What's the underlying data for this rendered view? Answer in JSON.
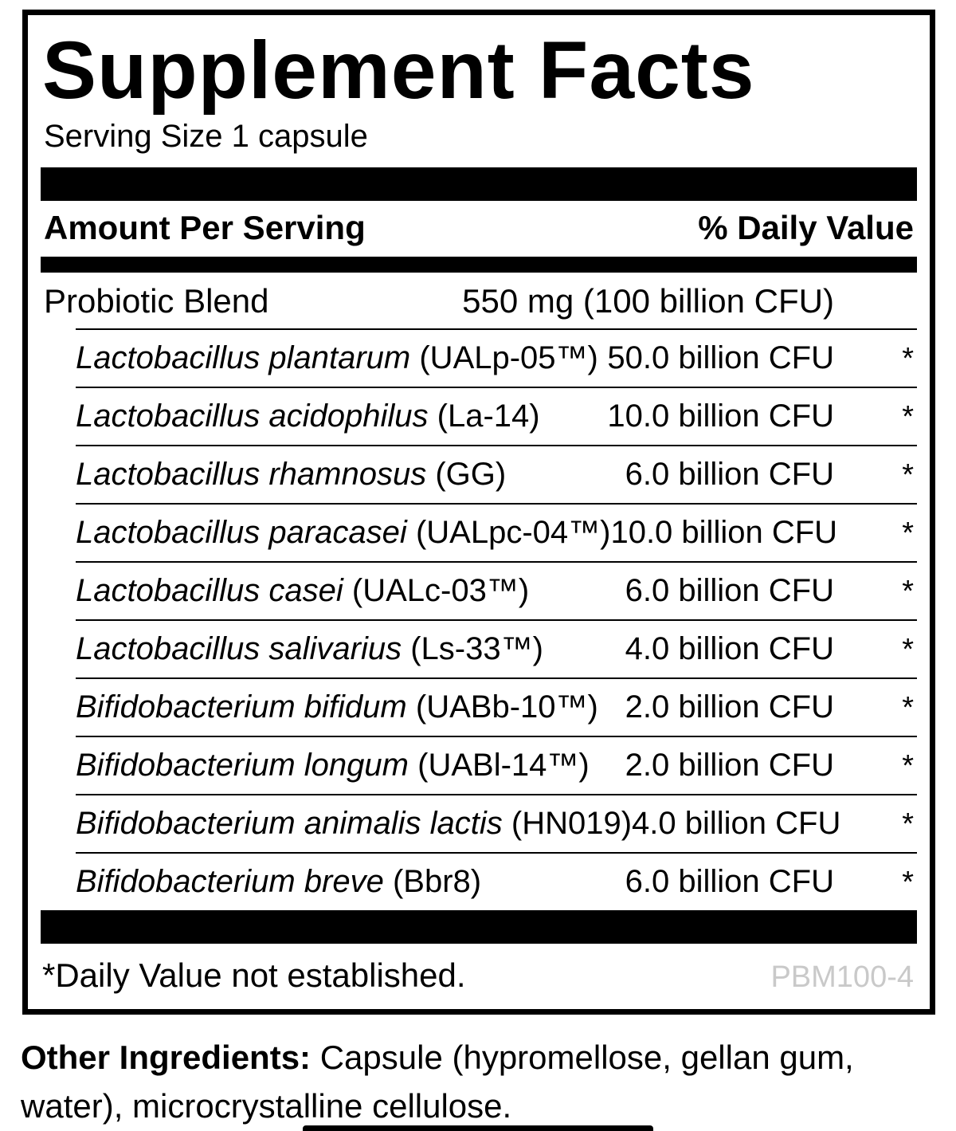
{
  "label": {
    "title": "Supplement Facts",
    "serving_size": "Serving Size 1 capsule",
    "header": {
      "amount_col": "Amount Per Serving",
      "dv_col": "% Daily Value"
    },
    "blend": {
      "name": "Probiotic Blend",
      "amount": "550 mg (100 billion CFU)"
    },
    "ingredients": [
      {
        "species": "Lactobacillus plantarum",
        "strain": "(UALp-05™)",
        "amount": "50.0 billion CFU",
        "dv": "*"
      },
      {
        "species": "Lactobacillus acidophilus",
        "strain": "(La-14)",
        "amount": "10.0 billion CFU",
        "dv": "*"
      },
      {
        "species": "Lactobacillus rhamnosus",
        "strain": "(GG)",
        "amount": "6.0 billion CFU",
        "dv": "*"
      },
      {
        "species": "Lactobacillus paracasei",
        "strain": "(UALpc-04™)",
        "amount": "10.0 billion CFU",
        "dv": "*"
      },
      {
        "species": "Lactobacillus casei",
        "strain": "(UALc-03™)",
        "amount": "6.0 billion CFU",
        "dv": "*"
      },
      {
        "species": "Lactobacillus salivarius",
        "strain": "(Ls-33™)",
        "amount": "4.0 billion CFU",
        "dv": "*"
      },
      {
        "species": "Bifidobacterium bifidum",
        "strain": "(UABb-10™)",
        "amount": "2.0 billion CFU",
        "dv": "*"
      },
      {
        "species": "Bifidobacterium longum",
        "strain": "(UABl-14™)",
        "amount": "2.0 billion CFU",
        "dv": "*"
      },
      {
        "species": "Bifidobacterium animalis lactis",
        "strain": "(HN019)",
        "amount": "4.0 billion CFU",
        "dv": "*"
      },
      {
        "species": "Bifidobacterium breve",
        "strain": "(Bbr8)",
        "amount": "6.0 billion CFU",
        "dv": "*"
      }
    ],
    "footnote": "*Daily Value not established.",
    "product_code": "PBM100-4",
    "colors": {
      "text": "#000000",
      "background": "#ffffff",
      "code_gray": "#c9c9c9"
    }
  },
  "other_ingredients": {
    "label": "Other Ingredients:",
    "text": "Capsule (hypromellose, gellan gum, water), microcrystalline cellulose."
  }
}
